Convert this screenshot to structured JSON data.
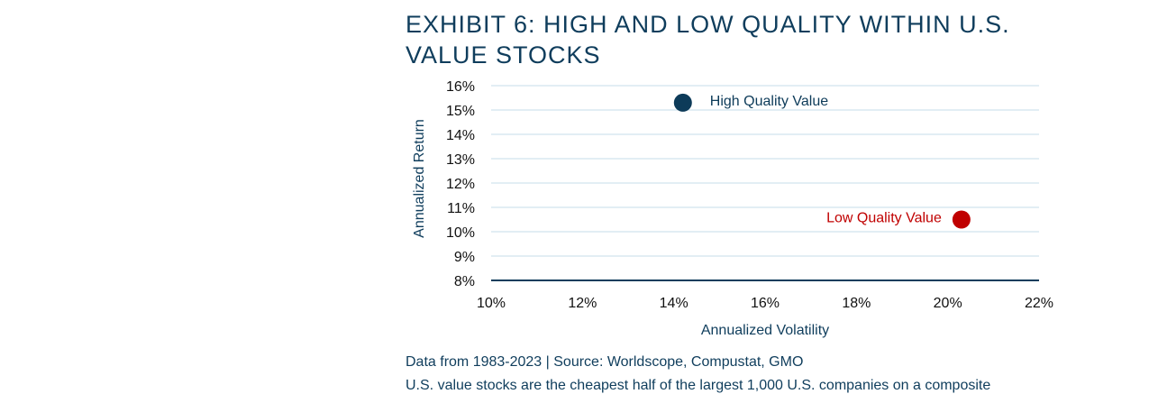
{
  "title": "EXHIBIT 6: HIGH AND LOW QUALITY WITHIN U.S. VALUE STOCKS",
  "source": "Data from 1983-2023 | Source: Worldscope, Compustat, GMO",
  "footnote": "U.S. value stocks are the cheapest half of the largest 1,000 U.S. companies on a composite",
  "chart_data": {
    "type": "scatter",
    "xlabel": "Annualized Volatility",
    "ylabel": "Annualized Return",
    "xlim": [
      10,
      22
    ],
    "ylim": [
      8,
      16
    ],
    "x_ticks": [
      10,
      12,
      14,
      16,
      18,
      20,
      22
    ],
    "y_ticks": [
      8,
      9,
      10,
      11,
      12,
      13,
      14,
      15,
      16
    ],
    "tick_suffix": "%",
    "grid": "horizontal",
    "points": [
      {
        "label": "High Quality Value",
        "x": 14.2,
        "y": 15.3,
        "color": "#0d3b59",
        "label_side": "right"
      },
      {
        "label": "Low Quality Value",
        "x": 20.3,
        "y": 10.5,
        "color": "#c00000",
        "label_side": "left"
      }
    ]
  },
  "colors": {
    "title": "#0f3d5c",
    "grid": "#c5dce9",
    "axis": "#0f3d5c"
  }
}
